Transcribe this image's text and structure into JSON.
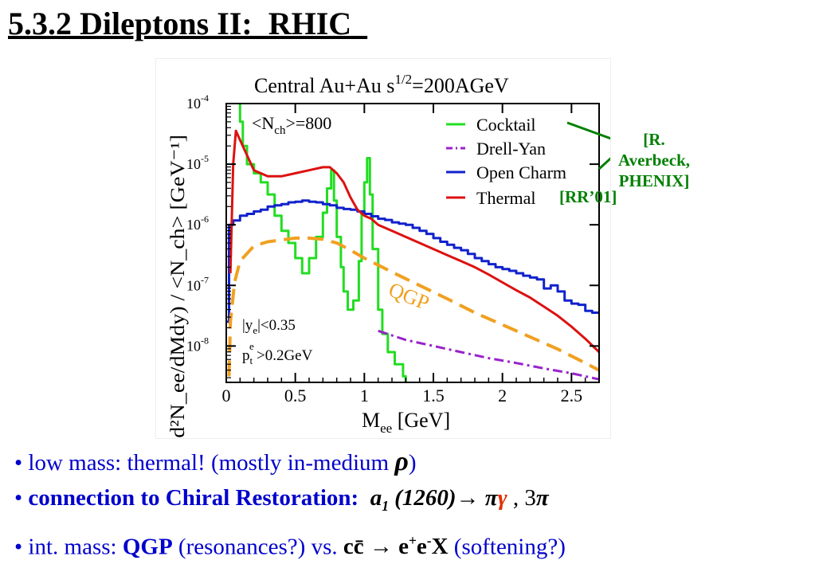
{
  "slide": {
    "title": "5.3.2 Dileptons II:  RHIC  "
  },
  "annotations": {
    "averbeck_line1": "[R. Averbeck,",
    "averbeck_line2": "PHENIX]",
    "rr01": "[RR’01]"
  },
  "bullets": {
    "b1_text": "low mass: thermal!  (mostly in-medium ",
    "b1_symbol": "ρ",
    "b1_close": ")",
    "b2_bold": "connection to Chiral Restoration:",
    "b2_a": "a",
    "b2_a_sub": "1",
    "b2_mass": "(1260)",
    "b2_arrow": "→",
    "b2_pi": "π",
    "b2_gamma": "γ",
    "b2_rest": ", 3",
    "b2_pi2": "π",
    "b3_text": "int. mass: ",
    "b3_qgp": "QGP",
    "b3_mid": " (resonances?) vs.  ",
    "b3_cc": "cc̄ → e",
    "b3_plus": "+",
    "b3_e": "e",
    "b3_minus": "-",
    "b3_x": "X",
    "b3_end": "  (softening?)"
  },
  "colors": {
    "cocktail": "#22dd22",
    "drell_yan": "#9922cc",
    "open_charm": "#1122cc",
    "thermal": "#dd1111",
    "qgp": "#f0a020",
    "title_purple": "#7030a0",
    "annotation_green": "#008000",
    "bullet_blue": "#0000cc"
  },
  "chart_data": {
    "type": "line",
    "title": "Central Au+Au   s",
    "title_sup": "1/2",
    "title_end": "=200AGeV",
    "nch_label": "<N",
    "nch_sub": "ch",
    "nch_value": ">=800",
    "xlabel": "M",
    "xlabel_sub": "ee",
    "xlabel_unit": " [GeV]",
    "ylabel": "(d²N_ee/dMdy) / <N_ch>  [GeV⁻¹]",
    "xlim": [
      0,
      2.7
    ],
    "ylim_log10": [
      -8.6,
      -4
    ],
    "log_y": true,
    "x_ticks": [
      "0",
      "0.5",
      "1",
      "1.5",
      "2",
      "2.5"
    ],
    "y_tick_exponents": [
      -4,
      -5,
      -6,
      -7,
      -8
    ],
    "cuts": {
      "line1": "|y",
      "line1_sub": "e",
      "line1_end": "|<0.35",
      "line2": "p",
      "line2_sub": "t",
      "line2_sup": "e",
      "line2_end": ">0.2GeV"
    },
    "legend_position": "top-right",
    "qgp_label": "QGP",
    "series": [
      {
        "name": "Cocktail",
        "key": "cocktail",
        "style": "step",
        "points": [
          [
            0.08,
            -3.9
          ],
          [
            0.1,
            -4.3
          ],
          [
            0.12,
            -4.7
          ],
          [
            0.15,
            -5.0
          ],
          [
            0.2,
            -5.15
          ],
          [
            0.25,
            -5.3
          ],
          [
            0.3,
            -5.5
          ],
          [
            0.35,
            -5.85
          ],
          [
            0.4,
            -6.1
          ],
          [
            0.45,
            -6.3
          ],
          [
            0.5,
            -6.55
          ],
          [
            0.55,
            -6.8
          ],
          [
            0.6,
            -6.55
          ],
          [
            0.65,
            -6.2
          ],
          [
            0.7,
            -5.8
          ],
          [
            0.73,
            -5.4
          ],
          [
            0.76,
            -5.1
          ],
          [
            0.78,
            -5.6
          ],
          [
            0.8,
            -6.2
          ],
          [
            0.83,
            -6.7
          ],
          [
            0.85,
            -7.1
          ],
          [
            0.88,
            -7.4
          ],
          [
            0.92,
            -7.25
          ],
          [
            0.96,
            -6.6
          ],
          [
            0.98,
            -5.8
          ],
          [
            1.0,
            -5.3
          ],
          [
            1.02,
            -4.9
          ],
          [
            1.04,
            -5.5
          ],
          [
            1.06,
            -6.4
          ],
          [
            1.1,
            -7.4
          ],
          [
            1.13,
            -7.8
          ],
          [
            1.17,
            -8.1
          ],
          [
            1.22,
            -8.3
          ],
          [
            1.28,
            -8.5
          ],
          [
            1.3,
            -8.6
          ]
        ]
      },
      {
        "name": "Drell-Yan",
        "key": "drell_yan",
        "style": "dashdot",
        "points": [
          [
            1.1,
            -7.75
          ],
          [
            1.3,
            -7.9
          ],
          [
            1.5,
            -8.0
          ],
          [
            1.7,
            -8.1
          ],
          [
            1.9,
            -8.2
          ],
          [
            2.1,
            -8.28
          ],
          [
            2.3,
            -8.37
          ],
          [
            2.5,
            -8.45
          ],
          [
            2.7,
            -8.55
          ]
        ]
      },
      {
        "name": "Open Charm",
        "key": "open_charm",
        "style": "step",
        "points": [
          [
            0.0,
            -7.6
          ],
          [
            0.02,
            -6.0
          ],
          [
            0.05,
            -5.93
          ],
          [
            0.1,
            -5.85
          ],
          [
            0.15,
            -5.82
          ],
          [
            0.2,
            -5.78
          ],
          [
            0.25,
            -5.75
          ],
          [
            0.3,
            -5.7
          ],
          [
            0.35,
            -5.68
          ],
          [
            0.4,
            -5.66
          ],
          [
            0.45,
            -5.63
          ],
          [
            0.5,
            -5.62
          ],
          [
            0.55,
            -5.6
          ],
          [
            0.6,
            -5.62
          ],
          [
            0.65,
            -5.63
          ],
          [
            0.7,
            -5.66
          ],
          [
            0.75,
            -5.68
          ],
          [
            0.8,
            -5.72
          ],
          [
            0.85,
            -5.74
          ],
          [
            0.9,
            -5.75
          ],
          [
            0.95,
            -5.78
          ],
          [
            1.0,
            -5.82
          ],
          [
            1.05,
            -5.86
          ],
          [
            1.1,
            -5.9
          ],
          [
            1.15,
            -5.92
          ],
          [
            1.2,
            -5.96
          ],
          [
            1.25,
            -5.98
          ],
          [
            1.3,
            -6.0
          ],
          [
            1.35,
            -6.05
          ],
          [
            1.4,
            -6.1
          ],
          [
            1.45,
            -6.15
          ],
          [
            1.5,
            -6.22
          ],
          [
            1.55,
            -6.28
          ],
          [
            1.6,
            -6.33
          ],
          [
            1.65,
            -6.38
          ],
          [
            1.7,
            -6.42
          ],
          [
            1.75,
            -6.48
          ],
          [
            1.8,
            -6.55
          ],
          [
            1.85,
            -6.6
          ],
          [
            1.9,
            -6.65
          ],
          [
            1.95,
            -6.7
          ],
          [
            2.0,
            -6.73
          ],
          [
            2.05,
            -6.76
          ],
          [
            2.1,
            -6.8
          ],
          [
            2.15,
            -6.84
          ],
          [
            2.2,
            -6.87
          ],
          [
            2.25,
            -6.9
          ],
          [
            2.3,
            -7.05
          ],
          [
            2.35,
            -7.0
          ],
          [
            2.4,
            -7.1
          ],
          [
            2.45,
            -7.25
          ],
          [
            2.5,
            -7.3
          ],
          [
            2.55,
            -7.32
          ],
          [
            2.6,
            -7.42
          ],
          [
            2.65,
            -7.45
          ],
          [
            2.7,
            -7.45
          ]
        ]
      },
      {
        "name": "Thermal",
        "key": "thermal",
        "style": "line",
        "points": [
          [
            0.03,
            -6.8
          ],
          [
            0.05,
            -5.0
          ],
          [
            0.07,
            -4.45
          ],
          [
            0.1,
            -4.6
          ],
          [
            0.15,
            -4.85
          ],
          [
            0.2,
            -5.1
          ],
          [
            0.3,
            -5.2
          ],
          [
            0.4,
            -5.2
          ],
          [
            0.5,
            -5.15
          ],
          [
            0.6,
            -5.1
          ],
          [
            0.7,
            -5.05
          ],
          [
            0.75,
            -5.05
          ],
          [
            0.8,
            -5.15
          ],
          [
            0.85,
            -5.3
          ],
          [
            0.9,
            -5.55
          ],
          [
            0.95,
            -5.75
          ],
          [
            1.0,
            -5.85
          ],
          [
            1.05,
            -5.9
          ],
          [
            1.1,
            -6.0
          ],
          [
            1.2,
            -6.1
          ],
          [
            1.3,
            -6.2
          ],
          [
            1.4,
            -6.3
          ],
          [
            1.5,
            -6.4
          ],
          [
            1.6,
            -6.5
          ],
          [
            1.7,
            -6.6
          ],
          [
            1.8,
            -6.7
          ],
          [
            1.9,
            -6.82
          ],
          [
            2.0,
            -6.95
          ],
          [
            2.1,
            -7.08
          ],
          [
            2.2,
            -7.2
          ],
          [
            2.3,
            -7.35
          ],
          [
            2.4,
            -7.5
          ],
          [
            2.5,
            -7.68
          ],
          [
            2.6,
            -7.88
          ],
          [
            2.7,
            -8.1
          ]
        ]
      },
      {
        "name": "QGP",
        "key": "qgp",
        "style": "dash",
        "points": [
          [
            0.02,
            -8.5
          ],
          [
            0.03,
            -7.6
          ],
          [
            0.06,
            -6.95
          ],
          [
            0.1,
            -6.6
          ],
          [
            0.2,
            -6.35
          ],
          [
            0.3,
            -6.28
          ],
          [
            0.4,
            -6.25
          ],
          [
            0.5,
            -6.22
          ],
          [
            0.6,
            -6.22
          ],
          [
            0.7,
            -6.24
          ],
          [
            0.8,
            -6.3
          ],
          [
            0.9,
            -6.42
          ],
          [
            1.0,
            -6.55
          ],
          [
            1.2,
            -6.78
          ],
          [
            1.4,
            -7.0
          ],
          [
            1.6,
            -7.22
          ],
          [
            1.8,
            -7.45
          ],
          [
            2.0,
            -7.65
          ],
          [
            2.2,
            -7.85
          ],
          [
            2.4,
            -8.05
          ],
          [
            2.6,
            -8.28
          ],
          [
            2.7,
            -8.4
          ]
        ]
      }
    ]
  }
}
